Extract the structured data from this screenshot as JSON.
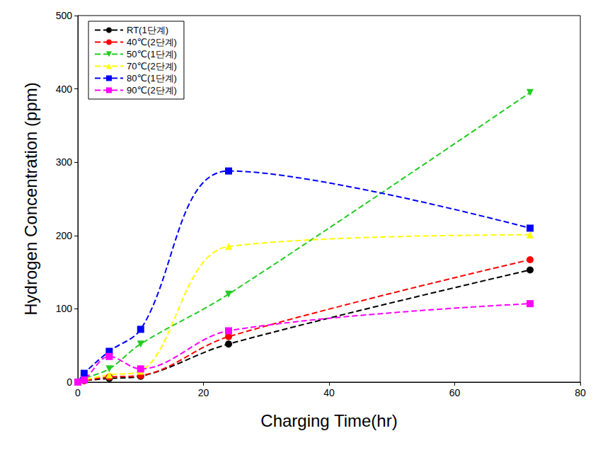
{
  "chart_data": {
    "type": "line",
    "x_label": "Charging Time(hr)",
    "y_label": "Hydrogen Concentration (ppm)",
    "xlim": [
      0,
      80
    ],
    "xticks": [
      0,
      20,
      40,
      60,
      80
    ],
    "ylim": [
      0,
      500
    ],
    "yticks": [
      0,
      100,
      200,
      300,
      400,
      500
    ],
    "grid": false,
    "legend": "upper left",
    "line_style": "dashed",
    "x": [
      0,
      1,
      5,
      10,
      24,
      72
    ],
    "series": [
      {
        "name": "RT(1단계)",
        "color": "#000000",
        "marker": "circle",
        "values": [
          0,
          2,
          5,
          8,
          52,
          153
        ]
      },
      {
        "name": "40℃(2단계)",
        "color": "#ff0000",
        "marker": "circle",
        "values": [
          0,
          2,
          7,
          9,
          62,
          167
        ]
      },
      {
        "name": "50℃(1단계)",
        "color": "#22cc22",
        "marker": "triangle-down",
        "values": [
          0,
          5,
          18,
          52,
          120,
          395
        ]
      },
      {
        "name": "70℃(2단계)",
        "color": "#ffff00",
        "marker": "triangle",
        "values": [
          0,
          3,
          10,
          15,
          185,
          201
        ]
      },
      {
        "name": "80℃(1단계)",
        "color": "#0000ff",
        "marker": "square",
        "values": [
          0,
          12,
          42,
          72,
          288,
          210
        ]
      },
      {
        "name": "90℃(2단계)",
        "color": "#ff00ff",
        "marker": "square",
        "values": [
          0,
          3,
          35,
          18,
          70,
          107
        ]
      }
    ]
  }
}
